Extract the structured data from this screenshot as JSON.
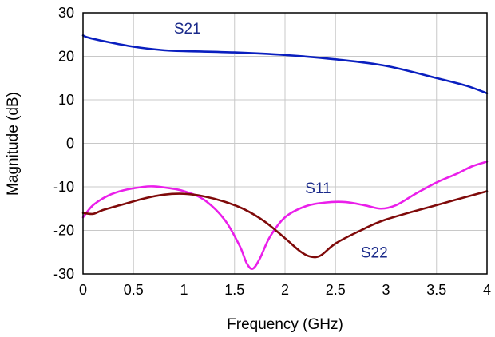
{
  "chart_data": {
    "type": "line",
    "title": "",
    "xlabel": "Frequency (GHz)",
    "ylabel": "Magnitude (dB)",
    "xlim": [
      0,
      4
    ],
    "ylim": [
      -30,
      30
    ],
    "x_ticks": [
      "0",
      "0.5",
      "1",
      "1.5",
      "2",
      "2.5",
      "3",
      "3.5",
      "4"
    ],
    "y_ticks": [
      "30",
      "20",
      "10",
      "0",
      "-10",
      "-20",
      "-30"
    ],
    "grid": true,
    "legend": "none (series labeled directly on plot)",
    "series": [
      {
        "name": "S21",
        "color": "#0a1fbf",
        "points": [
          [
            0,
            24.8
          ],
          [
            0.05,
            24.3
          ],
          [
            0.2,
            23.5
          ],
          [
            0.5,
            22.2
          ],
          [
            0.8,
            21.4
          ],
          [
            1.0,
            21.2
          ],
          [
            1.5,
            20.9
          ],
          [
            2.0,
            20.3
          ],
          [
            2.5,
            19.3
          ],
          [
            3.0,
            17.8
          ],
          [
            3.5,
            15.0
          ],
          [
            3.8,
            13.2
          ],
          [
            4.0,
            11.5
          ]
        ]
      },
      {
        "name": "S11",
        "color": "#ea1fea",
        "points": [
          [
            0,
            -17.0
          ],
          [
            0.1,
            -14.2
          ],
          [
            0.25,
            -12.0
          ],
          [
            0.4,
            -10.8
          ],
          [
            0.6,
            -10.0
          ],
          [
            0.7,
            -9.9
          ],
          [
            0.85,
            -10.3
          ],
          [
            1.0,
            -11.0
          ],
          [
            1.2,
            -13.0
          ],
          [
            1.4,
            -17.5
          ],
          [
            1.55,
            -23.5
          ],
          [
            1.62,
            -27.5
          ],
          [
            1.68,
            -28.8
          ],
          [
            1.75,
            -26.5
          ],
          [
            1.85,
            -21.5
          ],
          [
            2.0,
            -17.0
          ],
          [
            2.2,
            -14.5
          ],
          [
            2.4,
            -13.6
          ],
          [
            2.6,
            -13.5
          ],
          [
            2.8,
            -14.3
          ],
          [
            2.95,
            -15.0
          ],
          [
            3.1,
            -14.2
          ],
          [
            3.3,
            -11.5
          ],
          [
            3.5,
            -9.0
          ],
          [
            3.7,
            -7.0
          ],
          [
            3.85,
            -5.3
          ],
          [
            4.0,
            -4.2
          ]
        ]
      },
      {
        "name": "S22",
        "color": "#7f0a0a",
        "points": [
          [
            0,
            -16.0
          ],
          [
            0.1,
            -16.2
          ],
          [
            0.2,
            -15.3
          ],
          [
            0.4,
            -14.0
          ],
          [
            0.6,
            -12.7
          ],
          [
            0.8,
            -11.8
          ],
          [
            1.0,
            -11.6
          ],
          [
            1.2,
            -12.2
          ],
          [
            1.4,
            -13.4
          ],
          [
            1.6,
            -15.2
          ],
          [
            1.8,
            -18.0
          ],
          [
            2.0,
            -21.8
          ],
          [
            2.15,
            -24.8
          ],
          [
            2.25,
            -26.0
          ],
          [
            2.35,
            -25.8
          ],
          [
            2.5,
            -23.0
          ],
          [
            2.75,
            -20.0
          ],
          [
            3.0,
            -17.5
          ],
          [
            3.5,
            -14.2
          ],
          [
            4.0,
            -11.0
          ]
        ]
      }
    ],
    "annotations": [
      {
        "text": "S21",
        "series": "S21",
        "x": 0.9,
        "y": 25.2,
        "color": "#1a2a8a"
      },
      {
        "text": "S11",
        "series": "S11",
        "x": 2.2,
        "y": -11.5,
        "color": "#1a2a8a"
      },
      {
        "text": "S22",
        "series": "S22",
        "x": 2.75,
        "y": -26.2,
        "color": "#1a2a8a"
      }
    ]
  }
}
